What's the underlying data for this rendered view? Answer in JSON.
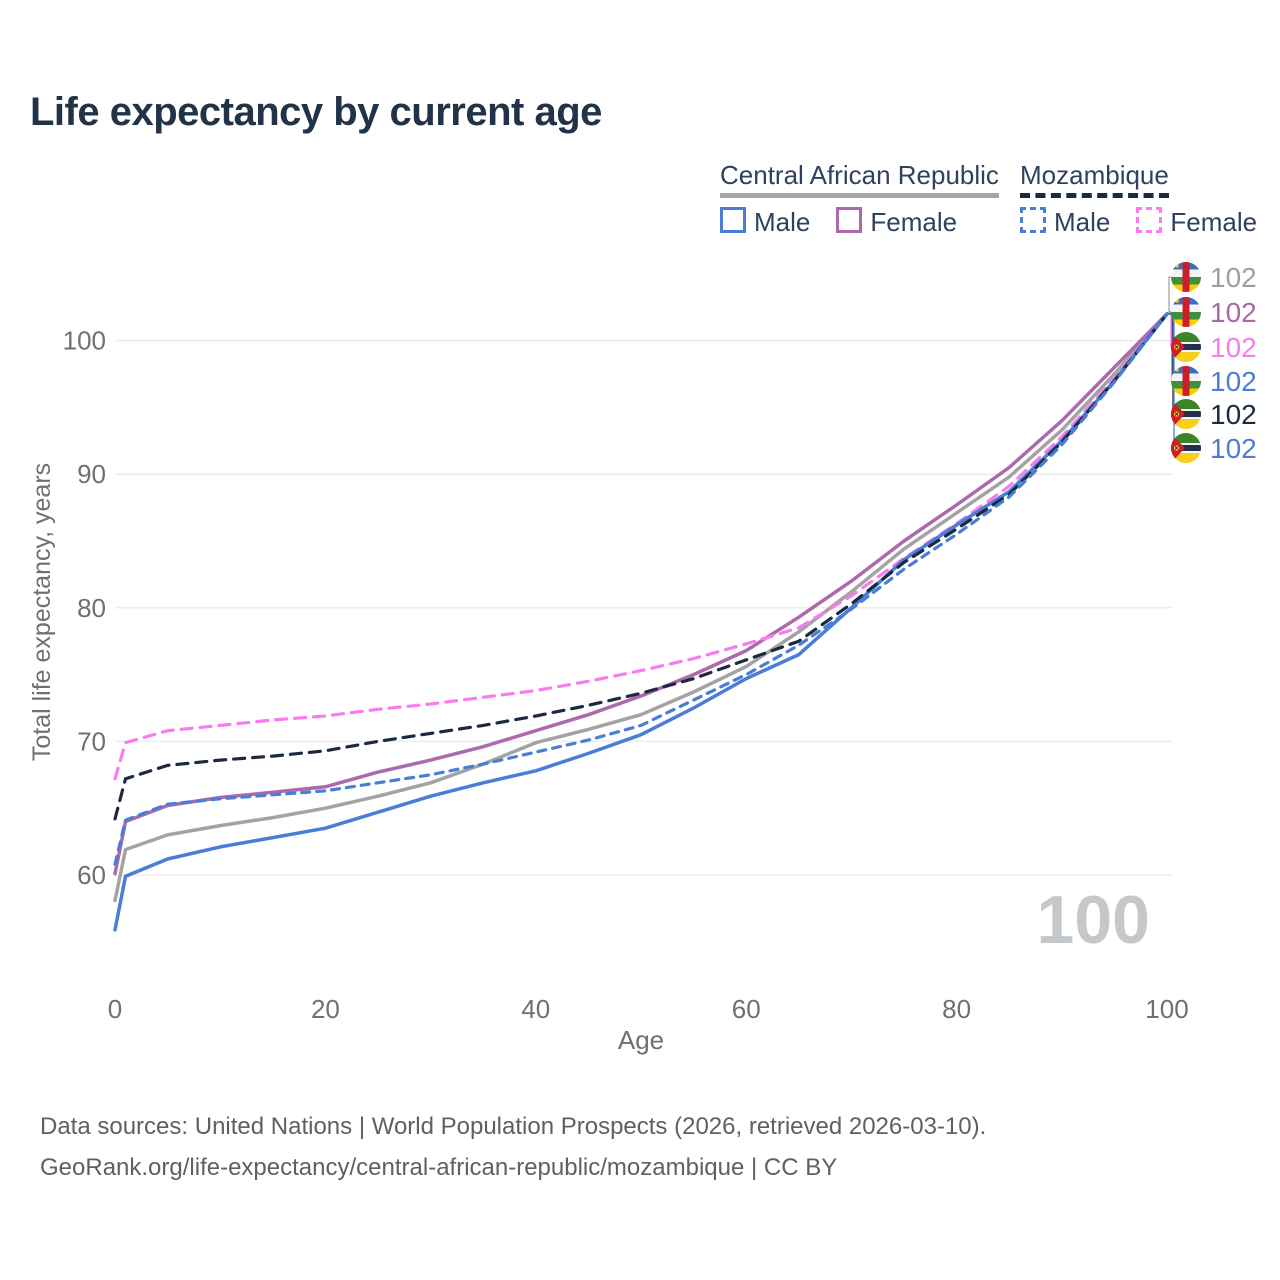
{
  "title": "Life expectancy by current age",
  "legend": {
    "groups": [
      {
        "country": "Central African Republic",
        "line_style": "solid",
        "line_color": "#a6a6a6",
        "items": [
          {
            "label": "Male",
            "color": "#4a7dd6",
            "line_style": "solid"
          },
          {
            "label": "Female",
            "color": "#ac69ae",
            "line_style": "solid"
          }
        ]
      },
      {
        "country": "Mozambique",
        "line_style": "dashed",
        "line_color": "#1b2a41",
        "items": [
          {
            "label": "Male",
            "color": "#4a7dd6",
            "line_style": "dashed"
          },
          {
            "label": "Female",
            "color": "#f97cee",
            "line_style": "dashed"
          }
        ]
      }
    ]
  },
  "chart_data": {
    "type": "line",
    "title": "Life expectancy by current age",
    "xlabel": "Age",
    "ylabel": "Total life expectancy, years",
    "xlim": [
      0,
      100
    ],
    "ylim": [
      55,
      103
    ],
    "x_ticks": [
      0,
      20,
      40,
      60,
      80,
      100
    ],
    "y_ticks": [
      60,
      70,
      80,
      90,
      100
    ],
    "grid": "horizontal-only",
    "legend_position": "top-right",
    "watermark": "100",
    "x": [
      0,
      1,
      5,
      10,
      15,
      20,
      25,
      30,
      35,
      40,
      45,
      50,
      55,
      60,
      65,
      70,
      75,
      80,
      85,
      90,
      95,
      100
    ],
    "series": [
      {
        "name": "Central African Republic",
        "country": "Central African Republic",
        "sex": "Both",
        "flag": "car",
        "color": "#a3a3a3",
        "label_color": "#9aa0a6",
        "line_style": "solid",
        "end_label": "102",
        "values": [
          58.1,
          61.9,
          63.0,
          63.7,
          64.3,
          65.0,
          65.9,
          66.9,
          68.3,
          69.9,
          70.9,
          72.0,
          73.7,
          75.6,
          78.2,
          81.2,
          84.4,
          87.1,
          89.8,
          93.3,
          97.5,
          102
        ]
      },
      {
        "name": "Central African Republic — Female",
        "country": "Central African Republic",
        "sex": "Female",
        "flag": "car",
        "color": "#ac69ae",
        "label_color": "#a869a4",
        "line_style": "solid",
        "end_label": "102",
        "values": [
          60.1,
          64.0,
          65.2,
          65.8,
          66.2,
          66.6,
          67.7,
          68.6,
          69.6,
          70.8,
          72.0,
          73.4,
          75.0,
          76.8,
          79.3,
          82.0,
          85.0,
          87.7,
          90.5,
          94.0,
          98.0,
          102
        ]
      },
      {
        "name": "Mozambique — Female",
        "country": "Mozambique",
        "sex": "Female",
        "flag": "moz",
        "color": "#f97cee",
        "label_color": "#f97cee",
        "line_style": "dashed",
        "end_label": "102",
        "values": [
          67.2,
          69.9,
          70.8,
          71.2,
          71.6,
          71.9,
          72.4,
          72.8,
          73.3,
          73.8,
          74.5,
          75.3,
          76.2,
          77.3,
          78.5,
          80.9,
          83.7,
          86.3,
          89.1,
          92.8,
          97.2,
          102
        ]
      },
      {
        "name": "Central African Republic — Male",
        "country": "Central African Republic",
        "sex": "Male",
        "flag": "car",
        "color": "#4a7dd6",
        "label_color": "#4a7dd6",
        "line_style": "solid",
        "end_label": "102",
        "values": [
          55.9,
          59.9,
          61.2,
          62.1,
          62.8,
          63.5,
          64.7,
          65.9,
          66.9,
          67.8,
          69.1,
          70.5,
          72.5,
          74.7,
          76.5,
          80.0,
          83.6,
          86.2,
          88.7,
          92.5,
          97.0,
          102
        ]
      },
      {
        "name": "Mozambique",
        "country": "Mozambique",
        "sex": "Both",
        "flag": "moz",
        "color": "#1b2a41",
        "label_color": "#1b2a41",
        "line_style": "dashed",
        "end_label": "102",
        "values": [
          64.2,
          67.2,
          68.2,
          68.6,
          68.9,
          69.3,
          70.0,
          70.6,
          71.2,
          71.9,
          72.7,
          73.6,
          74.7,
          76.1,
          77.5,
          80.3,
          83.4,
          85.9,
          88.5,
          92.4,
          97.0,
          102
        ]
      },
      {
        "name": "Mozambique — Male",
        "country": "Mozambique",
        "sex": "Male",
        "flag": "moz",
        "color": "#4a7dd6",
        "label_color": "#4a7dd6",
        "line_style": "dashed",
        "end_label": "102",
        "values": [
          60.8,
          64.1,
          65.3,
          65.7,
          66.0,
          66.3,
          66.9,
          67.5,
          68.3,
          69.2,
          70.1,
          71.2,
          73.1,
          75.0,
          77.2,
          79.9,
          82.9,
          85.5,
          88.3,
          92.2,
          96.9,
          102
        ]
      }
    ]
  },
  "footer": {
    "line1": "Data sources: United Nations | World Population Prospects (2026, retrieved 2026-03-10).",
    "line2": "GeoRank.org/life-expectancy/central-african-republic/mozambique | CC BY"
  }
}
